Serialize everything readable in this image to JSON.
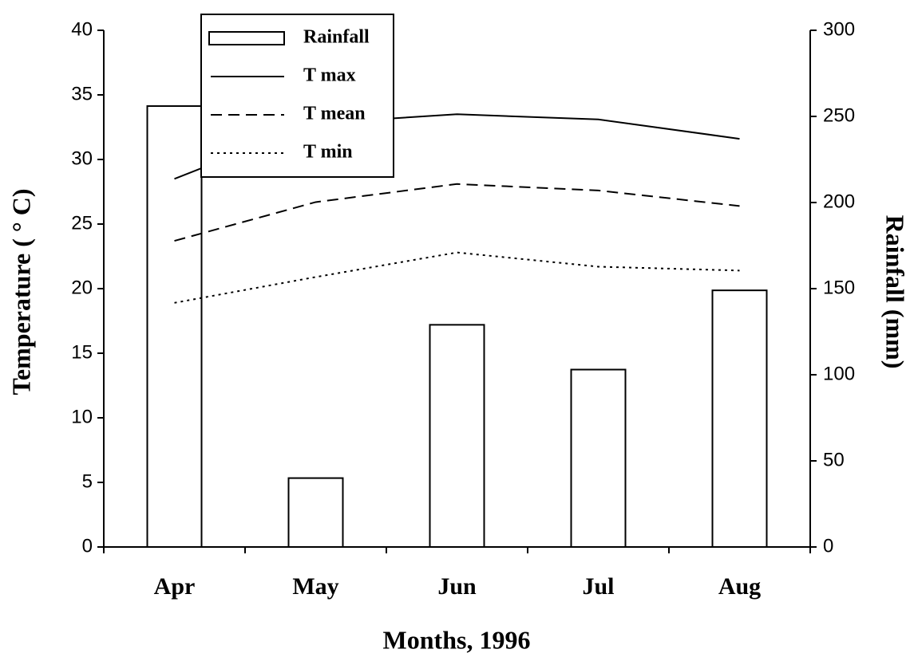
{
  "chart_data": {
    "type": "combo",
    "xlabel": "Months, 1996",
    "ylabel": "Temperature ( ° C)",
    "y2label": "Rainfall (mm)",
    "categories": [
      "Apr",
      "May",
      "Jun",
      "Jul",
      "Aug"
    ],
    "ylim": [
      0,
      40
    ],
    "yticks": [
      0,
      5,
      10,
      15,
      20,
      25,
      30,
      35,
      40
    ],
    "y2lim": [
      0,
      300
    ],
    "y2ticks": [
      0,
      50,
      100,
      150,
      200,
      250,
      300
    ],
    "legend": "top-left",
    "series": [
      {
        "name": "Rainfall",
        "type": "bar",
        "axis": "y2",
        "color": "#000000",
        "values": [
          256,
          40,
          129,
          103,
          149
        ]
      },
      {
        "name": "T max",
        "type": "line",
        "style": "solid",
        "color": "#000000",
        "values": [
          28.5,
          32.8,
          33.5,
          33.1,
          31.6
        ]
      },
      {
        "name": "T mean",
        "type": "line",
        "style": "dashed",
        "color": "#000000",
        "values": [
          23.7,
          26.7,
          28.1,
          27.6,
          26.4
        ]
      },
      {
        "name": "T min",
        "type": "line",
        "style": "dotted",
        "color": "#000000",
        "values": [
          18.9,
          20.9,
          22.8,
          21.7,
          21.4
        ]
      }
    ]
  }
}
